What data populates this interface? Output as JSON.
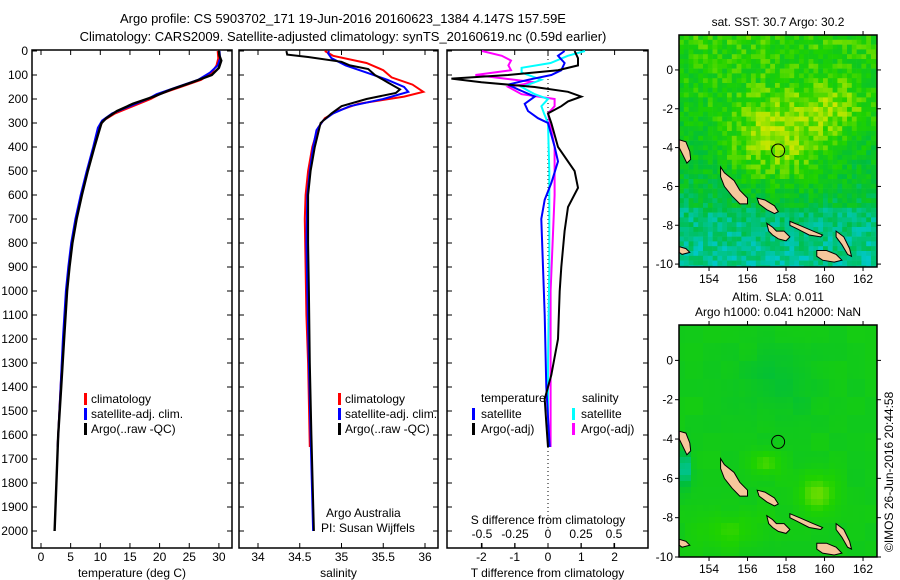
{
  "header": {
    "title_line1": "Argo profile: CS 5903702_171 19-Jun-2016 20160623_1384 4.147S 157.59E",
    "title_line2": "Climatology: CARS2009. Satellite-adjusted climatology: synTS_20160619.nc (0.59d earlier)"
  },
  "credit": "©IMOS 26-Jun-2016 20:44:58",
  "colors": {
    "climatology": "#ff0000",
    "satellite": "#0000ff",
    "argo": "#000000",
    "sal_satellite": "#00ffff",
    "sal_argo": "#ff00ff",
    "land": "#f5c79c"
  },
  "chart_data": [
    {
      "type": "line",
      "title": "",
      "xlabel": "temperature (deg C)",
      "ylabel": "",
      "xlim": [
        -1.5,
        31.5
      ],
      "ylim": [
        2000,
        0
      ],
      "xticks": [
        "0",
        "5",
        "10",
        "15",
        "20",
        "25",
        "30"
      ],
      "xtick_values": [
        0,
        5,
        10,
        15,
        20,
        25,
        30
      ],
      "yticks": [
        "0",
        "100",
        "200",
        "300",
        "400",
        "500",
        "600",
        "700",
        "800",
        "900",
        "1000",
        "1100",
        "1200",
        "1300",
        "1400",
        "1500",
        "1600",
        "1700",
        "1800",
        "1900",
        "2000"
      ],
      "legend": [
        "climatology",
        "satellite-adj. clim.",
        "Argo(..raw -QC)"
      ],
      "legend_placement": "lower-center",
      "series": [
        {
          "name": "climatology",
          "points": [
            [
              0,
              29.8
            ],
            [
              30,
              29.9
            ],
            [
              60,
              29.6
            ],
            [
              90,
              28.8
            ],
            [
              120,
              27
            ],
            [
              150,
              23.5
            ],
            [
              180,
              20
            ],
            [
              200,
              18.5
            ],
            [
              230,
              15.5
            ],
            [
              260,
              12.5
            ],
            [
              290,
              10.5
            ],
            [
              320,
              9.8
            ],
            [
              400,
              8.9
            ],
            [
              500,
              7.8
            ],
            [
              600,
              6.8
            ],
            [
              700,
              5.9
            ],
            [
              800,
              5.2
            ],
            [
              900,
              4.7
            ],
            [
              1000,
              4.3
            ],
            [
              1200,
              3.8
            ],
            [
              1400,
              3.3
            ],
            [
              1650,
              2.8
            ]
          ]
        },
        {
          "name": "satellite-adj. clim.",
          "points": [
            [
              0,
              30.1
            ],
            [
              30,
              30.2
            ],
            [
              60,
              29.8
            ],
            [
              90,
              28.5
            ],
            [
              120,
              26.5
            ],
            [
              150,
              23
            ],
            [
              180,
              19.5
            ],
            [
              200,
              18
            ],
            [
              230,
              15
            ],
            [
              260,
              12
            ],
            [
              290,
              10.3
            ],
            [
              320,
              9.6
            ],
            [
              400,
              8.8
            ],
            [
              500,
              7.7
            ],
            [
              600,
              6.7
            ],
            [
              700,
              5.8
            ],
            [
              800,
              5.1
            ],
            [
              900,
              4.6
            ],
            [
              1000,
              4.2
            ],
            [
              1200,
              3.7
            ],
            [
              1400,
              3.3
            ],
            [
              1650,
              2.8
            ]
          ]
        },
        {
          "name": "Argo(..raw -QC)",
          "points": [
            [
              0,
              30.0
            ],
            [
              20,
              30.1
            ],
            [
              40,
              30.4
            ],
            [
              70,
              30.0
            ],
            [
              100,
              28.8
            ],
            [
              130,
              25.5
            ],
            [
              160,
              22
            ],
            [
              190,
              19
            ],
            [
              220,
              15.5
            ],
            [
              250,
              12.8
            ],
            [
              280,
              11
            ],
            [
              300,
              10.2
            ],
            [
              350,
              9.6
            ],
            [
              400,
              9.0
            ],
            [
              500,
              7.9
            ],
            [
              600,
              6.9
            ],
            [
              700,
              6.0
            ],
            [
              800,
              5.3
            ],
            [
              900,
              4.8
            ],
            [
              1000,
              4.4
            ],
            [
              1200,
              3.9
            ],
            [
              1400,
              3.4
            ],
            [
              1600,
              2.9
            ],
            [
              1800,
              2.6
            ],
            [
              2000,
              2.3
            ]
          ]
        }
      ]
    },
    {
      "type": "line",
      "title": "",
      "xlabel": "salinity",
      "ylabel": "",
      "xlim": [
        33.77,
        36.15
      ],
      "ylim": [
        2000,
        0
      ],
      "xticks": [
        "34",
        "34.5",
        "35",
        "35.5",
        "36"
      ],
      "xtick_values": [
        34,
        34.5,
        35,
        35.5,
        36
      ],
      "legend": [
        "climatology",
        "satellite-adj. clim.",
        "Argo(..raw -QC)"
      ],
      "legend_placement": "lower-right",
      "annotation": [
        "Argo Australia",
        "PI: Susan Wijffels"
      ],
      "series": [
        {
          "name": "climatology",
          "points": [
            [
              0,
              34.8
            ],
            [
              20,
              34.9
            ],
            [
              50,
              35.3
            ],
            [
              80,
              35.5
            ],
            [
              110,
              35.6
            ],
            [
              140,
              35.85
            ],
            [
              170,
              35.98
            ],
            [
              190,
              35.75
            ],
            [
              220,
              35.2
            ],
            [
              250,
              34.95
            ],
            [
              280,
              34.8
            ],
            [
              320,
              34.72
            ],
            [
              400,
              34.65
            ],
            [
              500,
              34.6
            ],
            [
              600,
              34.57
            ],
            [
              700,
              34.56
            ],
            [
              900,
              34.57
            ],
            [
              1100,
              34.58
            ],
            [
              1300,
              34.6
            ],
            [
              1650,
              34.62
            ]
          ]
        },
        {
          "name": "satellite-adj. clim.",
          "points": [
            [
              0,
              34.85
            ],
            [
              10,
              34.84
            ],
            [
              30,
              34.88
            ],
            [
              60,
              35.05
            ],
            [
              90,
              35.3
            ],
            [
              120,
              35.55
            ],
            [
              150,
              35.75
            ],
            [
              170,
              35.8
            ],
            [
              200,
              35.5
            ],
            [
              230,
              35.1
            ],
            [
              260,
              34.9
            ],
            [
              290,
              34.78
            ],
            [
              330,
              34.7
            ],
            [
              400,
              34.66
            ],
            [
              500,
              34.62
            ],
            [
              600,
              34.59
            ],
            [
              800,
              34.58
            ],
            [
              1000,
              34.59
            ],
            [
              1300,
              34.61
            ],
            [
              1600,
              34.63
            ],
            [
              2000,
              34.66
            ]
          ]
        },
        {
          "name": "Argo(..raw -QC)",
          "points": [
            [
              0,
              34.34
            ],
            [
              15,
              34.35
            ],
            [
              25,
              34.6
            ],
            [
              45,
              35.0
            ],
            [
              60,
              35.1
            ],
            [
              75,
              35.32
            ],
            [
              100,
              35.4
            ],
            [
              130,
              35.55
            ],
            [
              160,
              35.7
            ],
            [
              175,
              35.65
            ],
            [
              200,
              35.3
            ],
            [
              230,
              35.0
            ],
            [
              260,
              34.88
            ],
            [
              300,
              34.75
            ],
            [
              400,
              34.68
            ],
            [
              500,
              34.63
            ],
            [
              600,
              34.6
            ],
            [
              800,
              34.6
            ],
            [
              1000,
              34.61
            ],
            [
              1300,
              34.62
            ],
            [
              1600,
              34.64
            ],
            [
              2000,
              34.67
            ]
          ]
        }
      ]
    },
    {
      "type": "line",
      "title": "",
      "xlabel": "T difference from climatology",
      "x2label": "S difference from climatology",
      "ylabel": "",
      "xlim": [
        -3.05,
        3.0
      ],
      "x2lim": [
        -0.76,
        0.76
      ],
      "ylim": [
        2000,
        0
      ],
      "xticks": [
        "-2",
        "-1",
        "0",
        "1",
        "2"
      ],
      "xtick_values": [
        -2,
        -1,
        0,
        1,
        2
      ],
      "x2ticks": [
        "-0.5",
        "-0.25",
        "0",
        "0.25",
        "0.5"
      ],
      "x2tick_values": [
        -0.5,
        -0.25,
        0,
        0.25,
        0.5
      ],
      "legend_titles": [
        "temperature",
        "salinity"
      ],
      "legend": [
        "satellite",
        "Argo(-adj)",
        "satellite",
        "Argo(-adj)"
      ],
      "legend_placement": "lower-center",
      "series": [
        {
          "name": "T satellite",
          "axis": "T",
          "points": [
            [
              0,
              0.5
            ],
            [
              20,
              0.3
            ],
            [
              50,
              0.5
            ],
            [
              80,
              0.4
            ],
            [
              100,
              0.1
            ],
            [
              120,
              -0.6
            ],
            [
              140,
              -1.2
            ],
            [
              160,
              -0.9
            ],
            [
              190,
              -0.4
            ],
            [
              220,
              -0.7
            ],
            [
              250,
              -0.6
            ],
            [
              280,
              -0.3
            ],
            [
              300,
              0
            ],
            [
              400,
              0.2
            ],
            [
              460,
              0.3
            ],
            [
              550,
              0.1
            ],
            [
              620,
              -0.1
            ],
            [
              700,
              -0.2
            ],
            [
              900,
              -0.15
            ],
            [
              1100,
              -0.1
            ],
            [
              1400,
              -0.05
            ],
            [
              1650,
              0.05
            ]
          ]
        },
        {
          "name": "T Argo(-adj)",
          "axis": "T",
          "points": [
            [
              0,
              0.8
            ],
            [
              30,
              0.9
            ],
            [
              60,
              0.9
            ],
            [
              80,
              0.3
            ],
            [
              100,
              -1.2
            ],
            [
              115,
              -2.9
            ],
            [
              130,
              -2.0
            ],
            [
              150,
              -0.4
            ],
            [
              170,
              0.6
            ],
            [
              190,
              1.0
            ],
            [
              210,
              0.6
            ],
            [
              230,
              0.4
            ],
            [
              260,
              0
            ],
            [
              300,
              0.1
            ],
            [
              400,
              0.3
            ],
            [
              500,
              0.8
            ],
            [
              570,
              0.9
            ],
            [
              650,
              0.6
            ],
            [
              750,
              0.5
            ],
            [
              900,
              0.4
            ],
            [
              1000,
              0.35
            ],
            [
              1200,
              0.3
            ],
            [
              1350,
              0.1
            ],
            [
              1450,
              -0.1
            ],
            [
              1550,
              -0.05
            ],
            [
              1650,
              0
            ]
          ]
        },
        {
          "name": "S satellite",
          "axis": "S",
          "points": [
            [
              0,
              0.28
            ],
            [
              20,
              0.15
            ],
            [
              50,
              0.02
            ],
            [
              70,
              -0.2
            ],
            [
              90,
              -0.2
            ],
            [
              120,
              -0.05
            ],
            [
              150,
              -0.2
            ],
            [
              180,
              -0.1
            ],
            [
              200,
              0
            ],
            [
              230,
              -0.05
            ],
            [
              260,
              -0.03
            ],
            [
              300,
              0
            ],
            [
              500,
              0.01
            ],
            [
              900,
              0.01
            ],
            [
              1300,
              0
            ],
            [
              1650,
              0
            ]
          ]
        },
        {
          "name": "S Argo(-adj)",
          "axis": "S",
          "points": [
            [
              0,
              -0.5
            ],
            [
              20,
              -0.35
            ],
            [
              40,
              -0.28
            ],
            [
              60,
              -0.3
            ],
            [
              80,
              -0.28
            ],
            [
              100,
              -0.55
            ],
            [
              130,
              -0.1
            ],
            [
              150,
              -0.3
            ],
            [
              180,
              -0.2
            ],
            [
              200,
              0.05
            ],
            [
              230,
              0.05
            ],
            [
              260,
              0
            ],
            [
              400,
              0.05
            ],
            [
              600,
              0.05
            ],
            [
              1000,
              0.02
            ],
            [
              1650,
              0.02
            ]
          ]
        }
      ]
    },
    {
      "type": "heatmap",
      "title": "sat. SST: 30.7 Argo: 30.2",
      "xticks": [
        "154",
        "156",
        "158",
        "160",
        "162"
      ],
      "xtick_values": [
        154,
        156,
        158,
        160,
        162
      ],
      "yticks": [
        "0",
        "-2",
        "-4",
        "-6",
        "-8",
        "-10"
      ],
      "ytick_values": [
        0,
        -2,
        -4,
        -6,
        -8,
        -10
      ],
      "xlim": [
        152.44,
        162.73
      ],
      "ylim": [
        -10.15,
        1.8
      ],
      "marker": {
        "lon": 157.59,
        "lat": -4.147
      }
    },
    {
      "type": "heatmap",
      "title": "Altim. SLA: 0.011",
      "subtitle": "Argo h1000: 0.041 h2000: NaN",
      "xticks": [
        "154",
        "156",
        "158",
        "160",
        "162"
      ],
      "xtick_values": [
        154,
        156,
        158,
        160,
        162
      ],
      "yticks": [
        "0",
        "-2",
        "-4",
        "-6",
        "-8",
        "-10"
      ],
      "ytick_values": [
        0,
        -2,
        -4,
        -6,
        -8,
        -10
      ],
      "xlim": [
        152.44,
        162.73
      ],
      "ylim": [
        -10.0,
        1.8
      ],
      "marker": {
        "lon": 157.59,
        "lat": -4.147
      }
    }
  ]
}
